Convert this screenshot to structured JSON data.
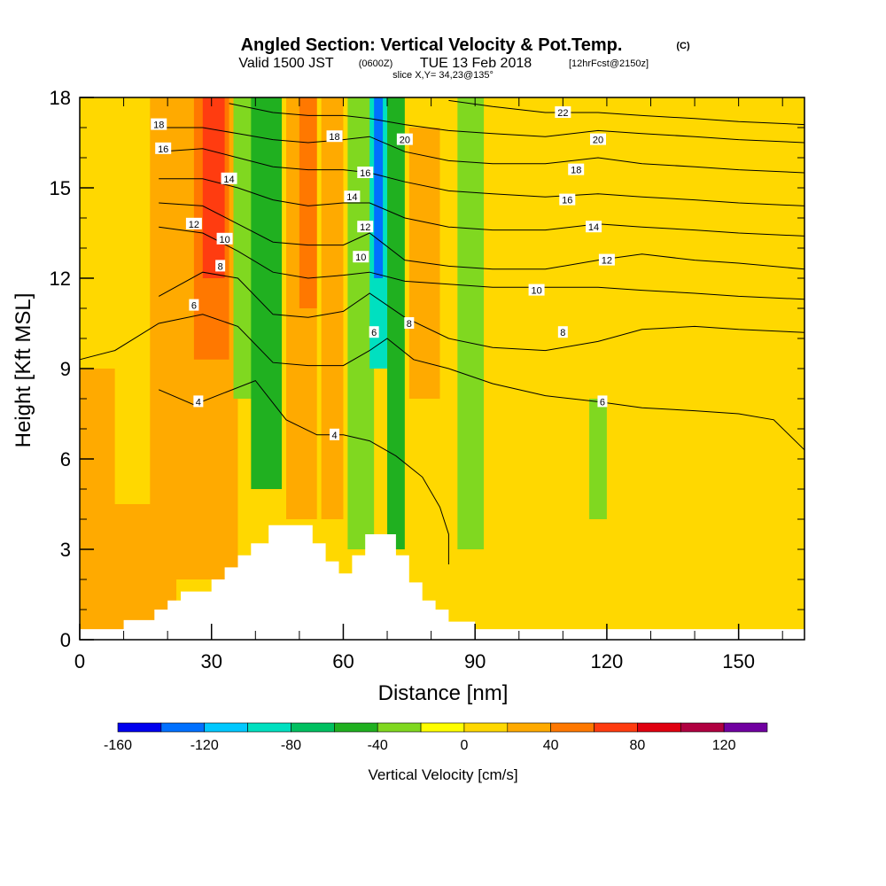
{
  "title": {
    "main": "Angled Section: Vertical Velocity & Pot.Temp.",
    "units": "(C)",
    "valid_prefix": "Valid 1500 JST",
    "valid_utc": "(0600Z)",
    "valid_date": "TUE 13 Feb 2018",
    "forecast": "[12hrFcst@2150z]",
    "slice": "slice X,Y= 34,23@135°"
  },
  "chart_data": {
    "type": "heatmap",
    "xlabel": "Distance [nm]",
    "ylabel": "Height [Kft MSL]",
    "xlim": [
      0,
      165
    ],
    "ylim": [
      0,
      18
    ],
    "x_ticks": [
      0,
      30,
      60,
      90,
      120,
      150
    ],
    "y_ticks": [
      0,
      3,
      6,
      9,
      12,
      15,
      18
    ],
    "colorbar": {
      "label": "Vertical Velocity [cm/s]",
      "tick_labels": [
        "-160",
        "-120",
        "-80",
        "-40",
        "0",
        "40",
        "80",
        "120"
      ],
      "tick_values": [
        -160,
        -120,
        -80,
        -40,
        0,
        40,
        80,
        120
      ],
      "bins": [
        -160,
        -140,
        -120,
        -100,
        -80,
        -60,
        -40,
        -20,
        0,
        20,
        40,
        60,
        80,
        100,
        120,
        140
      ],
      "colors": [
        "#0000ee",
        "#0070ff",
        "#00c8ff",
        "#00e0c0",
        "#00c060",
        "#20b020",
        "#80d820",
        "#ffff00",
        "#ffd800",
        "#ffaa00",
        "#ff7800",
        "#ff3c10",
        "#e00010",
        "#b00040",
        "#7000a0"
      ]
    },
    "field_bands": [
      {
        "x0": 0,
        "x1": 165,
        "y0": 0,
        "y1": 18,
        "value": 5
      },
      {
        "x0": 0,
        "x1": 22,
        "y0": 0.3,
        "y1": 4.5,
        "value": 25
      },
      {
        "x0": 0,
        "x1": 8,
        "y0": 4.5,
        "y1": 9,
        "value": 25
      },
      {
        "x0": 16,
        "x1": 36,
        "y0": 2,
        "y1": 18,
        "value": 30
      },
      {
        "x0": 26,
        "x1": 34,
        "y0": 9.3,
        "y1": 18,
        "value": 50
      },
      {
        "x0": 28,
        "x1": 33,
        "y0": 12,
        "y1": 18,
        "value": 70
      },
      {
        "x0": 35,
        "x1": 40,
        "y0": 8,
        "y1": 18,
        "value": -30
      },
      {
        "x0": 39,
        "x1": 46,
        "y0": 5,
        "y1": 18,
        "value": -50
      },
      {
        "x0": 47,
        "x1": 54,
        "y0": 4,
        "y1": 18,
        "value": 30
      },
      {
        "x0": 50,
        "x1": 54,
        "y0": 11,
        "y1": 18,
        "value": 50
      },
      {
        "x0": 55,
        "x1": 60,
        "y0": 4,
        "y1": 18,
        "value": 25
      },
      {
        "x0": 61,
        "x1": 67,
        "y0": 3,
        "y1": 18,
        "value": -40
      },
      {
        "x0": 66,
        "x1": 70,
        "y0": 9,
        "y1": 18,
        "value": -90
      },
      {
        "x0": 67,
        "x1": 69,
        "y0": 12,
        "y1": 18,
        "value": -130
      },
      {
        "x0": 70,
        "x1": 74,
        "y0": 3,
        "y1": 18,
        "value": -50
      },
      {
        "x0": 75,
        "x1": 82,
        "y0": 8,
        "y1": 17,
        "value": 35
      },
      {
        "x0": 86,
        "x1": 92,
        "y0": 3,
        "y1": 18,
        "value": -30
      },
      {
        "x0": 92,
        "x1": 102,
        "y0": 2,
        "y1": 16,
        "value": 5
      },
      {
        "x0": 104,
        "x1": 120,
        "y0": 10,
        "y1": 17,
        "value": 15
      },
      {
        "x0": 116,
        "x1": 120,
        "y0": 4,
        "y1": 8,
        "value": -30
      },
      {
        "x0": 135,
        "x1": 158,
        "y0": 0.5,
        "y1": 9.5,
        "value": 15
      }
    ],
    "terrain": [
      [
        0,
        0.35
      ],
      [
        10,
        0.35
      ],
      [
        10,
        0.65
      ],
      [
        17,
        0.65
      ],
      [
        17,
        1
      ],
      [
        20,
        1
      ],
      [
        20,
        1.3
      ],
      [
        23,
        1.3
      ],
      [
        23,
        1.6
      ],
      [
        30,
        1.6
      ],
      [
        30,
        2
      ],
      [
        33,
        2
      ],
      [
        33,
        2.4
      ],
      [
        36,
        2.4
      ],
      [
        36,
        2.8
      ],
      [
        39,
        2.8
      ],
      [
        39,
        3.2
      ],
      [
        43,
        3.2
      ],
      [
        43,
        3.8
      ],
      [
        53,
        3.8
      ],
      [
        53,
        3.2
      ],
      [
        56,
        3.2
      ],
      [
        56,
        2.6
      ],
      [
        59,
        2.6
      ],
      [
        59,
        2.2
      ],
      [
        62,
        2.2
      ],
      [
        62,
        2.8
      ],
      [
        65,
        2.8
      ],
      [
        65,
        3.5
      ],
      [
        72,
        3.5
      ],
      [
        72,
        2.8
      ],
      [
        75,
        2.8
      ],
      [
        75,
        1.9
      ],
      [
        78,
        1.9
      ],
      [
        78,
        1.3
      ],
      [
        81,
        1.3
      ],
      [
        81,
        1
      ],
      [
        84,
        1
      ],
      [
        84,
        0.6
      ],
      [
        90,
        0.6
      ],
      [
        90,
        0.35
      ],
      [
        165,
        0.35
      ]
    ],
    "isentropes_deg_c": [
      {
        "value": "4",
        "points": [
          [
            18,
            8.3
          ],
          [
            26,
            7.8
          ],
          [
            33,
            8.2
          ],
          [
            40,
            8.6
          ],
          [
            47,
            7.3
          ],
          [
            54,
            6.8
          ],
          [
            60,
            6.8
          ],
          [
            66,
            6.6
          ],
          [
            72,
            6.1
          ],
          [
            78,
            5.4
          ],
          [
            82,
            4.4
          ],
          [
            84,
            3.5
          ],
          [
            84,
            2.5
          ]
        ]
      },
      {
        "value": "6",
        "points": [
          [
            0,
            9.3
          ],
          [
            8,
            9.6
          ],
          [
            18,
            10.5
          ],
          [
            28,
            10.8
          ],
          [
            36,
            10.4
          ],
          [
            44,
            9.2
          ],
          [
            52,
            9.1
          ],
          [
            60,
            9.1
          ],
          [
            66,
            9.6
          ],
          [
            70,
            10
          ],
          [
            76,
            9.3
          ],
          [
            84,
            9
          ],
          [
            94,
            8.5
          ],
          [
            106,
            8.1
          ],
          [
            118,
            7.9
          ],
          [
            128,
            7.7
          ],
          [
            140,
            7.6
          ],
          [
            150,
            7.5
          ],
          [
            158,
            7.3
          ],
          [
            165,
            6.3
          ]
        ]
      },
      {
        "value": "8",
        "points": [
          [
            18,
            11.4
          ],
          [
            28,
            12.2
          ],
          [
            36,
            12
          ],
          [
            44,
            10.8
          ],
          [
            52,
            10.7
          ],
          [
            60,
            10.9
          ],
          [
            66,
            11.5
          ],
          [
            74,
            10.7
          ],
          [
            84,
            10
          ],
          [
            94,
            9.7
          ],
          [
            106,
            9.6
          ],
          [
            118,
            9.9
          ],
          [
            128,
            10.3
          ],
          [
            140,
            10.4
          ],
          [
            150,
            10.3
          ],
          [
            165,
            10.2
          ]
        ]
      },
      {
        "value": "10",
        "points": [
          [
            18,
            13.7
          ],
          [
            28,
            13.5
          ],
          [
            36,
            12.9
          ],
          [
            44,
            12.2
          ],
          [
            52,
            12
          ],
          [
            60,
            12.1
          ],
          [
            66,
            12.2
          ],
          [
            74,
            11.9
          ],
          [
            84,
            11.8
          ],
          [
            94,
            11.7
          ],
          [
            106,
            11.7
          ],
          [
            118,
            11.7
          ],
          [
            128,
            11.6
          ],
          [
            140,
            11.5
          ],
          [
            150,
            11.4
          ],
          [
            165,
            11.3
          ]
        ]
      },
      {
        "value": "12",
        "points": [
          [
            18,
            14.5
          ],
          [
            28,
            14.4
          ],
          [
            36,
            13.8
          ],
          [
            44,
            13.2
          ],
          [
            52,
            13.1
          ],
          [
            60,
            13.1
          ],
          [
            66,
            13.5
          ],
          [
            74,
            12.6
          ],
          [
            84,
            12.4
          ],
          [
            94,
            12.3
          ],
          [
            106,
            12.3
          ],
          [
            118,
            12.6
          ],
          [
            128,
            12.8
          ],
          [
            140,
            12.6
          ],
          [
            150,
            12.5
          ],
          [
            165,
            12.3
          ]
        ]
      },
      {
        "value": "14",
        "points": [
          [
            18,
            15.3
          ],
          [
            28,
            15.3
          ],
          [
            36,
            15
          ],
          [
            44,
            14.6
          ],
          [
            52,
            14.4
          ],
          [
            60,
            14.5
          ],
          [
            66,
            14.5
          ],
          [
            74,
            14
          ],
          [
            84,
            13.7
          ],
          [
            94,
            13.6
          ],
          [
            106,
            13.6
          ],
          [
            118,
            13.8
          ],
          [
            128,
            13.7
          ],
          [
            140,
            13.6
          ],
          [
            150,
            13.5
          ],
          [
            165,
            13.4
          ]
        ]
      },
      {
        "value": "16",
        "points": [
          [
            18,
            16.2
          ],
          [
            28,
            16.3
          ],
          [
            36,
            16
          ],
          [
            44,
            15.7
          ],
          [
            52,
            15.6
          ],
          [
            60,
            15.6
          ],
          [
            66,
            15.5
          ],
          [
            74,
            15.2
          ],
          [
            84,
            14.9
          ],
          [
            94,
            14.8
          ],
          [
            106,
            14.7
          ],
          [
            118,
            14.8
          ],
          [
            128,
            14.7
          ],
          [
            140,
            14.6
          ],
          [
            150,
            14.5
          ],
          [
            165,
            14.4
          ]
        ]
      },
      {
        "value": "18",
        "points": [
          [
            18,
            17
          ],
          [
            28,
            17
          ],
          [
            36,
            16.8
          ],
          [
            44,
            16.6
          ],
          [
            52,
            16.5
          ],
          [
            60,
            16.6
          ],
          [
            66,
            16.7
          ],
          [
            74,
            16.2
          ],
          [
            84,
            15.9
          ],
          [
            94,
            15.8
          ],
          [
            106,
            15.8
          ],
          [
            118,
            16
          ],
          [
            128,
            15.8
          ],
          [
            140,
            15.7
          ],
          [
            150,
            15.6
          ],
          [
            165,
            15.5
          ]
        ]
      },
      {
        "value": "20",
        "points": [
          [
            34,
            17.8
          ],
          [
            44,
            17.5
          ],
          [
            52,
            17.4
          ],
          [
            60,
            17.4
          ],
          [
            66,
            17.3
          ],
          [
            74,
            17.1
          ],
          [
            84,
            16.9
          ],
          [
            94,
            16.8
          ],
          [
            106,
            16.7
          ],
          [
            118,
            16.9
          ],
          [
            128,
            16.8
          ],
          [
            140,
            16.7
          ],
          [
            150,
            16.6
          ],
          [
            165,
            16.5
          ]
        ]
      },
      {
        "value": "22",
        "points": [
          [
            84,
            17.9
          ],
          [
            94,
            17.7
          ],
          [
            106,
            17.5
          ],
          [
            118,
            17.5
          ],
          [
            128,
            17.4
          ],
          [
            140,
            17.3
          ],
          [
            150,
            17.2
          ],
          [
            165,
            17.1
          ]
        ]
      }
    ],
    "isentrope_labels": [
      {
        "text": "4",
        "x": 27,
        "y": 7.9
      },
      {
        "text": "4",
        "x": 58,
        "y": 6.8
      },
      {
        "text": "6",
        "x": 119,
        "y": 7.9
      },
      {
        "text": "6",
        "x": 26,
        "y": 11.1
      },
      {
        "text": "6",
        "x": 67,
        "y": 10.2
      },
      {
        "text": "8",
        "x": 32,
        "y": 12.4
      },
      {
        "text": "8",
        "x": 75,
        "y": 10.5
      },
      {
        "text": "8",
        "x": 110,
        "y": 10.2
      },
      {
        "text": "10",
        "x": 33,
        "y": 13.3
      },
      {
        "text": "10",
        "x": 64,
        "y": 12.7
      },
      {
        "text": "10",
        "x": 104,
        "y": 11.6
      },
      {
        "text": "12",
        "x": 26,
        "y": 13.8
      },
      {
        "text": "12",
        "x": 65,
        "y": 13.7
      },
      {
        "text": "12",
        "x": 120,
        "y": 12.6
      },
      {
        "text": "14",
        "x": 34,
        "y": 15.3
      },
      {
        "text": "14",
        "x": 62,
        "y": 14.7
      },
      {
        "text": "14",
        "x": 117,
        "y": 13.7
      },
      {
        "text": "16",
        "x": 19,
        "y": 16.3
      },
      {
        "text": "16",
        "x": 65,
        "y": 15.5
      },
      {
        "text": "16",
        "x": 111,
        "y": 14.6
      },
      {
        "text": "18",
        "x": 18,
        "y": 17.1
      },
      {
        "text": "18",
        "x": 58,
        "y": 16.7
      },
      {
        "text": "18",
        "x": 113,
        "y": 15.6
      },
      {
        "text": "20",
        "x": 74,
        "y": 16.6
      },
      {
        "text": "20",
        "x": 118,
        "y": 16.6
      },
      {
        "text": "22",
        "x": 110,
        "y": 17.5
      }
    ]
  }
}
